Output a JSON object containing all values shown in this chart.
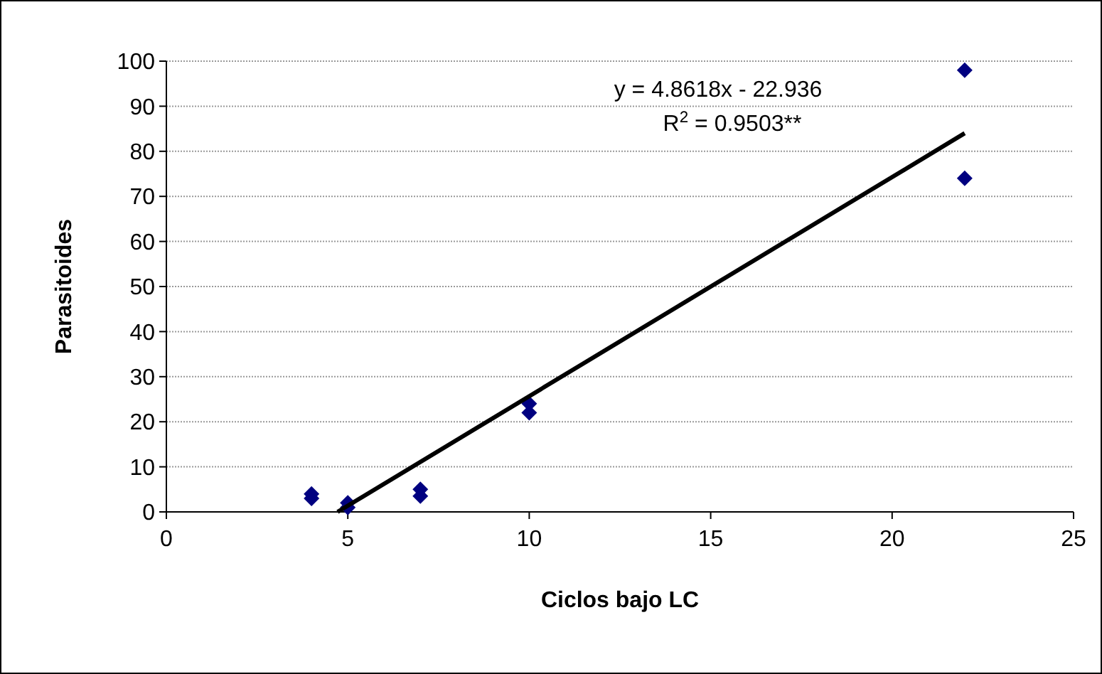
{
  "chart_data": {
    "type": "scatter",
    "xlabel": "Ciclos bajo LC",
    "ylabel": "Parasitoides",
    "xlim": [
      0,
      25
    ],
    "xticks": [
      0,
      5,
      10,
      15,
      20,
      25
    ],
    "ylim": [
      0,
      100
    ],
    "yticks": [
      0,
      10,
      20,
      30,
      40,
      50,
      60,
      70,
      80,
      90,
      100
    ],
    "grid": "y",
    "marker": "diamond",
    "series": [
      {
        "color": "#000080",
        "x": [
          4,
          4,
          5,
          5,
          7,
          7,
          10,
          10,
          22,
          22
        ],
        "values": [
          3,
          4,
          1,
          2,
          3.5,
          5,
          22,
          24,
          98,
          74
        ]
      },
      {
        "type": "line",
        "color": "#000000",
        "x": [
          4.718,
          22
        ],
        "values": [
          0,
          84
        ],
        "marker": "none",
        "line_style": "solid"
      }
    ],
    "annotations": [
      "y = 4.8618x - 22.936",
      "R$^{2}$ = 0.9503**"
    ]
  }
}
